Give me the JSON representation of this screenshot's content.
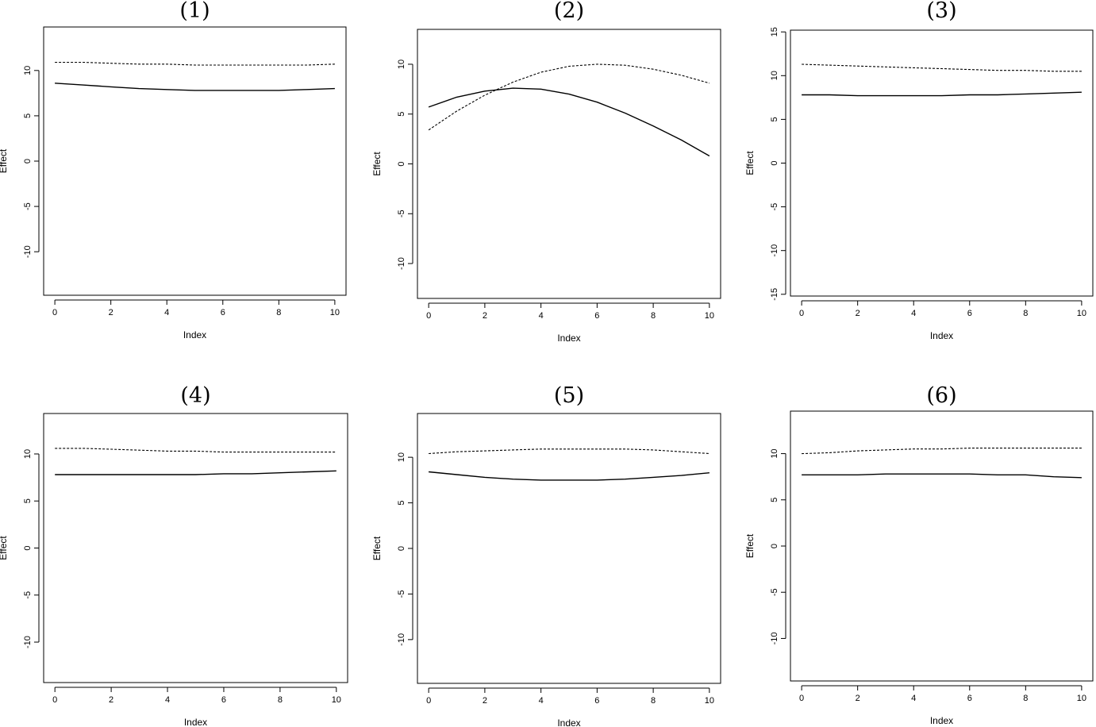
{
  "chart_data": [
    {
      "type": "line",
      "title": "(1)",
      "xlabel": "Index",
      "ylabel": "Effect",
      "xlim": [
        -0.4,
        10.4
      ],
      "ylim": [
        -14.8,
        14.8
      ],
      "xticks": [
        0,
        2,
        4,
        6,
        8,
        10
      ],
      "yticks": [
        -10,
        -5,
        0,
        5,
        10
      ],
      "x": [
        0,
        1,
        2,
        3,
        4,
        5,
        6,
        7,
        8,
        9,
        10
      ],
      "series": [
        {
          "style": "solid",
          "values": [
            8.6,
            8.4,
            8.2,
            8.0,
            7.9,
            7.8,
            7.8,
            7.8,
            7.8,
            7.9,
            8.0
          ]
        },
        {
          "style": "dotted",
          "values": [
            10.9,
            10.9,
            10.8,
            10.7,
            10.7,
            10.6,
            10.6,
            10.6,
            10.6,
            10.6,
            10.7
          ]
        }
      ]
    },
    {
      "type": "line",
      "title": "(2)",
      "xlabel": "Index",
      "ylabel": "Effect",
      "xlim": [
        -0.4,
        10.4
      ],
      "ylim": [
        -13.5,
        13.5
      ],
      "xticks": [
        0,
        2,
        4,
        6,
        8,
        10
      ],
      "yticks": [
        -10,
        -5,
        0,
        5,
        10
      ],
      "x": [
        0,
        1,
        2,
        3,
        4,
        5,
        6,
        7,
        8,
        9,
        10
      ],
      "series": [
        {
          "style": "solid",
          "values": [
            5.7,
            6.7,
            7.3,
            7.6,
            7.5,
            7.0,
            6.2,
            5.1,
            3.8,
            2.4,
            0.8
          ]
        },
        {
          "style": "dotted",
          "values": [
            3.4,
            5.3,
            6.9,
            8.2,
            9.2,
            9.8,
            10.0,
            9.9,
            9.5,
            8.9,
            8.1
          ]
        }
      ]
    },
    {
      "type": "line",
      "title": "(3)",
      "xlabel": "Index",
      "ylabel": "Effect",
      "xlim": [
        -0.4,
        10.4
      ],
      "ylim": [
        -15.2,
        15.2
      ],
      "xticks": [
        0,
        2,
        4,
        6,
        8,
        10
      ],
      "yticks": [
        -15,
        -10,
        -5,
        0,
        5,
        10,
        15
      ],
      "x": [
        0,
        1,
        2,
        3,
        4,
        5,
        6,
        7,
        8,
        9,
        10
      ],
      "series": [
        {
          "style": "solid",
          "values": [
            7.8,
            7.8,
            7.7,
            7.7,
            7.7,
            7.7,
            7.8,
            7.8,
            7.9,
            8.0,
            8.1
          ]
        },
        {
          "style": "dotted",
          "values": [
            11.3,
            11.2,
            11.1,
            11.0,
            10.9,
            10.8,
            10.7,
            10.6,
            10.6,
            10.5,
            10.5
          ]
        }
      ]
    },
    {
      "type": "line",
      "title": "(4)",
      "xlabel": "Index",
      "ylabel": "Effect",
      "xlim": [
        -0.4,
        10.4
      ],
      "ylim": [
        -14.3,
        14.3
      ],
      "xticks": [
        0,
        2,
        4,
        6,
        8,
        10
      ],
      "yticks": [
        -10,
        -5,
        0,
        5,
        10
      ],
      "x": [
        0,
        1,
        2,
        3,
        4,
        5,
        6,
        7,
        8,
        9,
        10
      ],
      "series": [
        {
          "style": "solid",
          "values": [
            7.8,
            7.8,
            7.8,
            7.8,
            7.8,
            7.8,
            7.9,
            7.9,
            8.0,
            8.1,
            8.2
          ]
        },
        {
          "style": "dotted",
          "values": [
            10.6,
            10.6,
            10.5,
            10.4,
            10.3,
            10.3,
            10.2,
            10.2,
            10.2,
            10.2,
            10.2
          ]
        }
      ]
    },
    {
      "type": "line",
      "title": "(5)",
      "xlabel": "Index",
      "ylabel": "Effect",
      "xlim": [
        -0.4,
        10.4
      ],
      "ylim": [
        -14.8,
        14.8
      ],
      "xticks": [
        0,
        2,
        4,
        6,
        8,
        10
      ],
      "yticks": [
        -10,
        -5,
        0,
        5,
        10
      ],
      "x": [
        0,
        1,
        2,
        3,
        4,
        5,
        6,
        7,
        8,
        9,
        10
      ],
      "series": [
        {
          "style": "solid",
          "values": [
            8.4,
            8.1,
            7.8,
            7.6,
            7.5,
            7.5,
            7.5,
            7.6,
            7.8,
            8.0,
            8.3
          ]
        },
        {
          "style": "dotted",
          "values": [
            10.4,
            10.6,
            10.7,
            10.8,
            10.9,
            10.9,
            10.9,
            10.9,
            10.8,
            10.6,
            10.4
          ]
        }
      ]
    },
    {
      "type": "line",
      "title": "(6)",
      "xlabel": "Index",
      "ylabel": "Effect",
      "xlim": [
        -0.4,
        10.4
      ],
      "ylim": [
        -14.6,
        14.6
      ],
      "xticks": [
        0,
        2,
        4,
        6,
        8,
        10
      ],
      "yticks": [
        -10,
        -5,
        0,
        5,
        10
      ],
      "x": [
        0,
        1,
        2,
        3,
        4,
        5,
        6,
        7,
        8,
        9,
        10
      ],
      "series": [
        {
          "style": "solid",
          "values": [
            7.7,
            7.7,
            7.7,
            7.8,
            7.8,
            7.8,
            7.8,
            7.7,
            7.7,
            7.5,
            7.4
          ]
        },
        {
          "style": "dotted",
          "values": [
            10.0,
            10.1,
            10.3,
            10.4,
            10.5,
            10.5,
            10.6,
            10.6,
            10.6,
            10.6,
            10.6
          ]
        }
      ]
    }
  ]
}
